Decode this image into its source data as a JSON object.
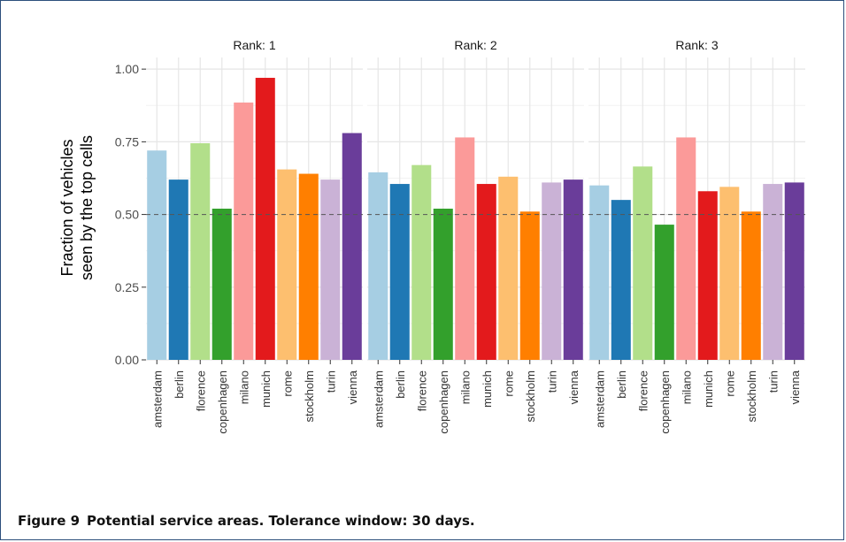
{
  "caption": {
    "label": "Figure 9",
    "text": "Potential service areas. Tolerance window: 30 days."
  },
  "chart_data": {
    "type": "bar",
    "ylabel_line1": "Fraction of vehicles",
    "ylabel_line2": "seen by the top cells",
    "xlabel": "",
    "ylim": [
      0,
      1.04
    ],
    "yticks": [
      0.0,
      0.25,
      0.5,
      0.75,
      1.0
    ],
    "ytick_labels": [
      "0.00",
      "0.25",
      "0.50",
      "0.75",
      "1.00"
    ],
    "reference_line": 0.5,
    "grid": true,
    "legend": "none",
    "categories": [
      "amsterdam",
      "berlin",
      "florence",
      "copenhagen",
      "milano",
      "munich",
      "rome",
      "stockholm",
      "turin",
      "vienna"
    ],
    "colors": [
      "#a6cee3",
      "#1f78b4",
      "#b2df8a",
      "#33a02c",
      "#fb9a99",
      "#e31a1c",
      "#fdbf6f",
      "#ff7f00",
      "#cab2d6",
      "#6a3d9a"
    ],
    "panels": [
      {
        "title": "Rank: 1",
        "values": [
          0.72,
          0.62,
          0.745,
          0.52,
          0.885,
          0.97,
          0.655,
          0.64,
          0.62,
          0.78
        ]
      },
      {
        "title": "Rank: 2",
        "values": [
          0.645,
          0.605,
          0.67,
          0.52,
          0.765,
          0.605,
          0.63,
          0.51,
          0.61,
          0.62
        ]
      },
      {
        "title": "Rank: 3",
        "values": [
          0.6,
          0.55,
          0.665,
          0.465,
          0.765,
          0.58,
          0.595,
          0.51,
          0.605,
          0.61
        ]
      }
    ]
  }
}
